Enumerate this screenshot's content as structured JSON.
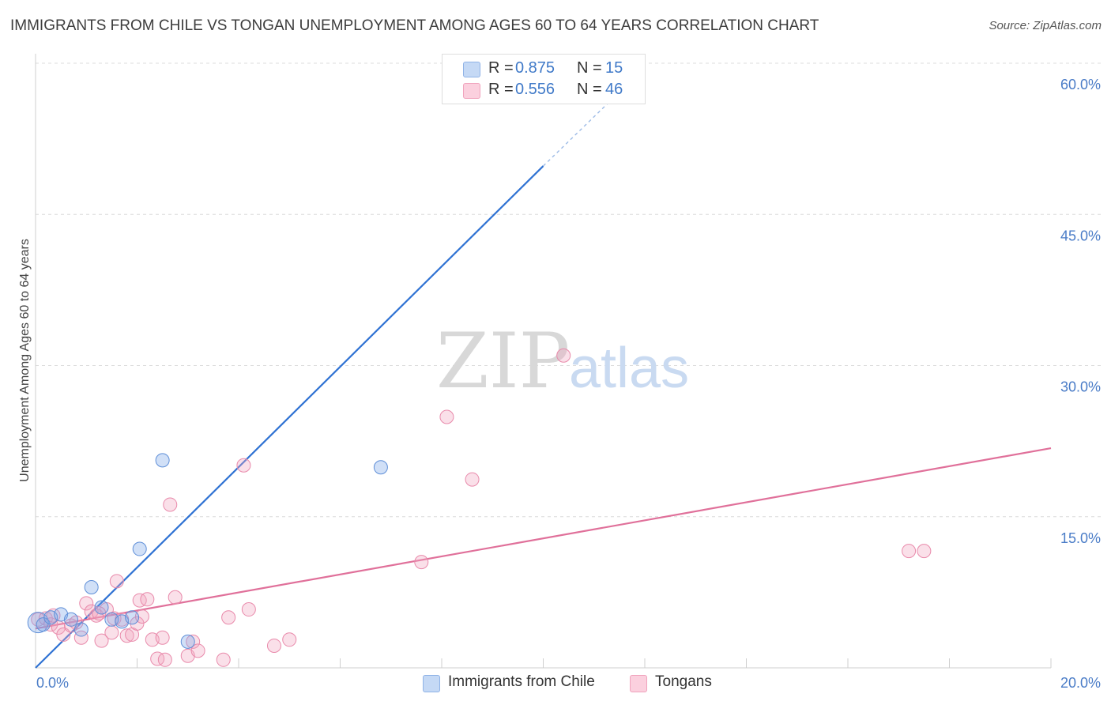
{
  "title": "IMMIGRANTS FROM CHILE VS TONGAN UNEMPLOYMENT AMONG AGES 60 TO 64 YEARS CORRELATION CHART",
  "source": "Source: ZipAtlas.com",
  "watermark": {
    "zip": "ZIP",
    "atlas": "atlas"
  },
  "legend": {
    "r_label": "R =",
    "n_label": "N =",
    "series": [
      {
        "name": "Immigrants from Chile",
        "r": "0.875",
        "n": "15"
      },
      {
        "name": "Tongans",
        "r": "0.556",
        "n": "46"
      }
    ]
  },
  "chart_data": {
    "type": "scatter",
    "title": "IMMIGRANTS FROM CHILE VS TONGAN UNEMPLOYMENT AMONG AGES 60 TO 64 YEARS CORRELATION CHART",
    "xlabel": "",
    "ylabel": "Unemployment Among Ages 60 to 64 years",
    "xlim": [
      0,
      20
    ],
    "ylim": [
      0,
      60
    ],
    "x_tick_labels": [
      "0.0%",
      "20.0%"
    ],
    "y_ticks": [
      15,
      30,
      45,
      60
    ],
    "y_tick_labels": [
      "15.0%",
      "30.0%",
      "45.0%",
      "60.0%"
    ],
    "grid": true,
    "colors": {
      "chile": "#7aa7e8",
      "chile_line": "#2f72d3",
      "tongans": "#f2a7bf",
      "tongans_line": "#e0709a"
    },
    "series": [
      {
        "name": "Immigrants from Chile",
        "points": [
          [
            0.05,
            4.5
          ],
          [
            0.15,
            4.3
          ],
          [
            0.3,
            5.0
          ],
          [
            0.5,
            5.3
          ],
          [
            0.7,
            4.8
          ],
          [
            0.9,
            3.8
          ],
          [
            1.1,
            8.0
          ],
          [
            1.3,
            6.0
          ],
          [
            1.5,
            4.8
          ],
          [
            1.7,
            4.6
          ],
          [
            1.9,
            5.0
          ],
          [
            2.05,
            11.8
          ],
          [
            2.5,
            20.6
          ],
          [
            3.0,
            2.6
          ],
          [
            6.8,
            19.9
          ]
        ],
        "trend": {
          "x0": 0,
          "y0": 0,
          "x1": 10,
          "y1": 49.8,
          "dash_to_x": 11.8,
          "dash_to_y": 58.6
        }
      },
      {
        "name": "Tongans",
        "points": [
          [
            0.05,
            4.8
          ],
          [
            0.2,
            4.9
          ],
          [
            0.3,
            4.3
          ],
          [
            0.45,
            4.0
          ],
          [
            0.55,
            3.3
          ],
          [
            0.7,
            4.2
          ],
          [
            0.8,
            4.5
          ],
          [
            0.9,
            3.0
          ],
          [
            1.0,
            6.4
          ],
          [
            1.1,
            5.6
          ],
          [
            1.2,
            5.2
          ],
          [
            1.3,
            2.7
          ],
          [
            1.4,
            5.8
          ],
          [
            1.5,
            3.5
          ],
          [
            1.55,
            4.9
          ],
          [
            1.6,
            8.6
          ],
          [
            1.7,
            4.8
          ],
          [
            1.8,
            3.2
          ],
          [
            1.9,
            3.3
          ],
          [
            2.0,
            4.4
          ],
          [
            2.05,
            6.7
          ],
          [
            2.1,
            5.1
          ],
          [
            2.2,
            6.8
          ],
          [
            2.3,
            2.8
          ],
          [
            2.4,
            0.9
          ],
          [
            2.5,
            3.0
          ],
          [
            2.55,
            0.8
          ],
          [
            2.65,
            16.2
          ],
          [
            2.75,
            7.0
          ],
          [
            3.0,
            1.2
          ],
          [
            3.1,
            2.6
          ],
          [
            3.2,
            1.7
          ],
          [
            3.7,
            0.8
          ],
          [
            3.8,
            5.0
          ],
          [
            4.1,
            20.1
          ],
          [
            4.2,
            5.8
          ],
          [
            4.7,
            2.2
          ],
          [
            5.0,
            2.8
          ],
          [
            7.6,
            10.5
          ],
          [
            8.1,
            24.9
          ],
          [
            8.6,
            18.7
          ],
          [
            10.4,
            31.0
          ],
          [
            17.2,
            11.6
          ],
          [
            17.5,
            11.6
          ],
          [
            0.35,
            5.2
          ],
          [
            1.25,
            5.4
          ]
        ],
        "trend": {
          "x0": 0,
          "y0": 3.9,
          "x1": 20,
          "y1": 21.8
        }
      }
    ]
  }
}
